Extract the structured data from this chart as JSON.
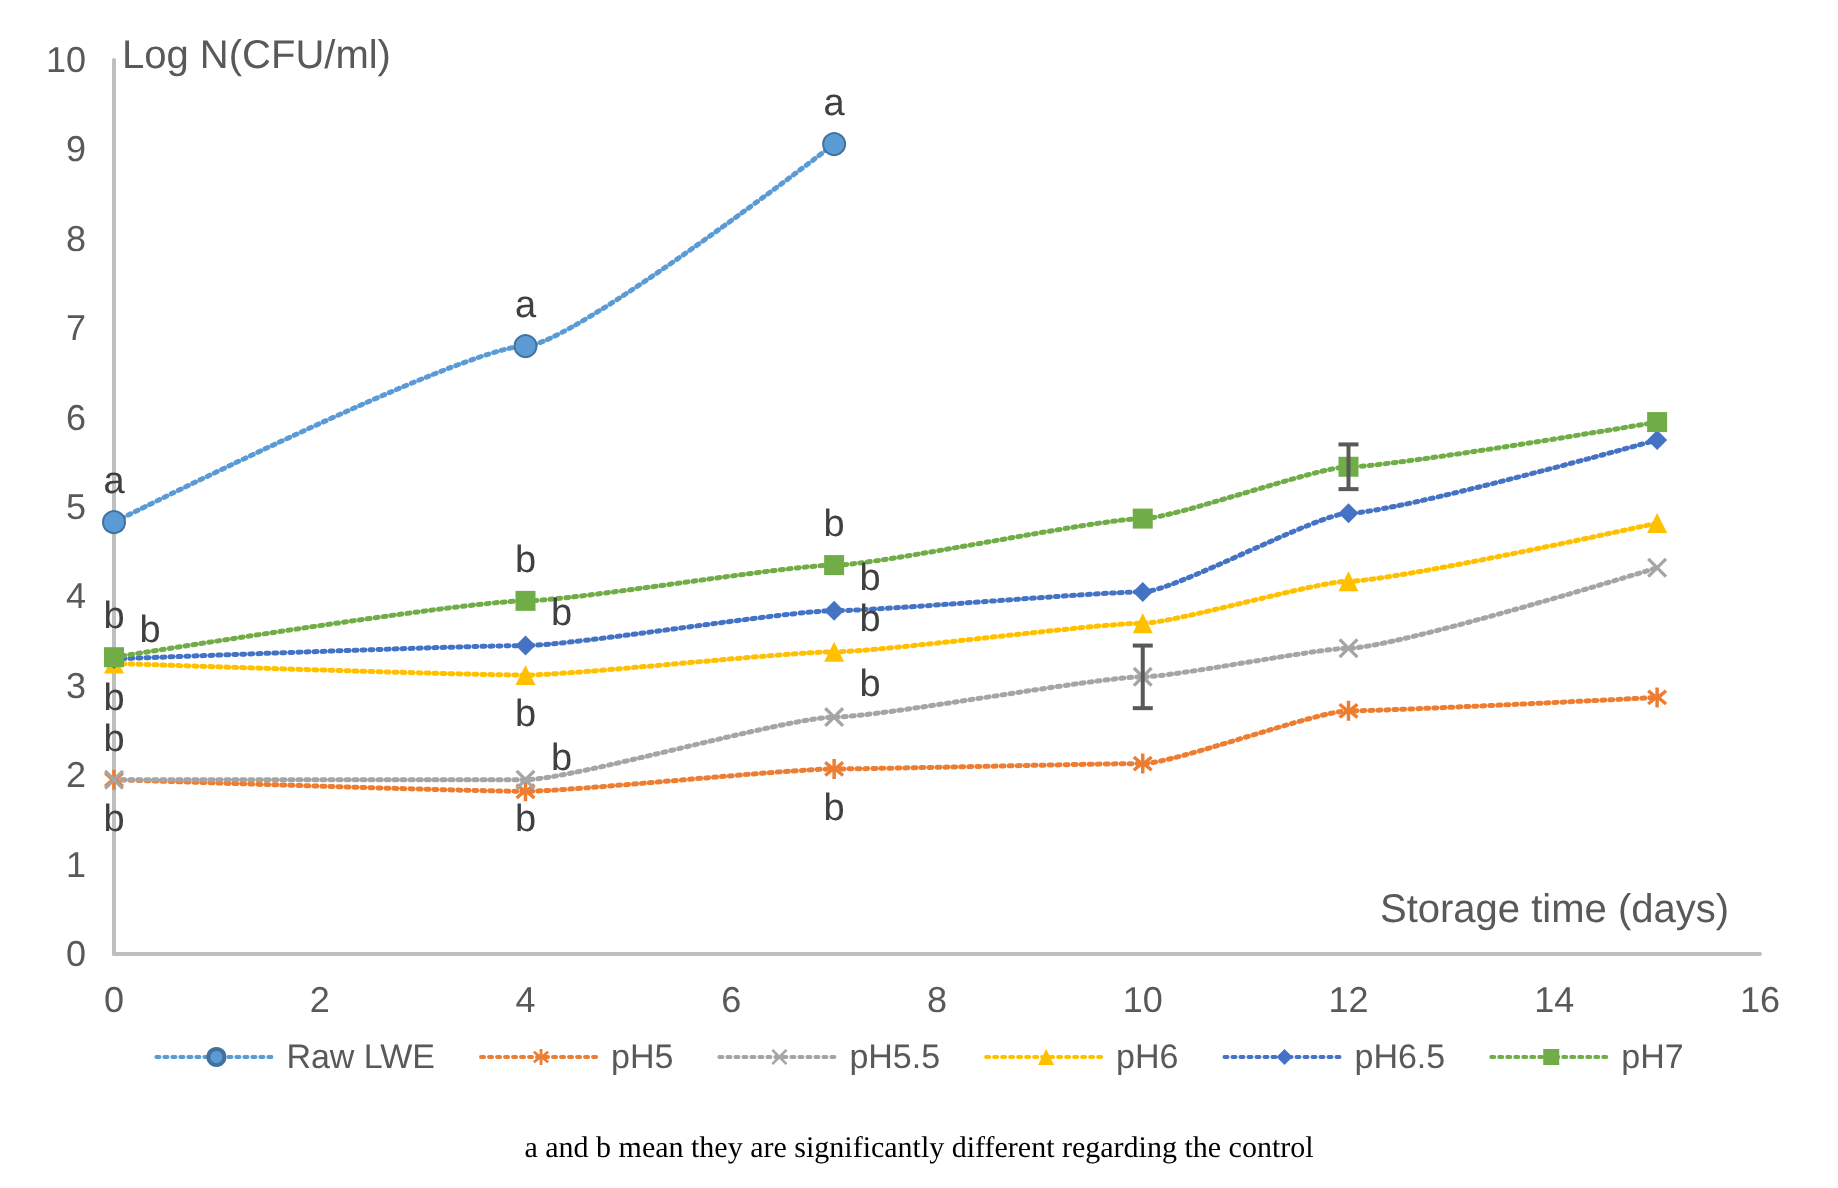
{
  "chart_data": {
    "type": "line",
    "xlabel": "Storage time (days)",
    "ylabel": "Log N(CFU/ml)",
    "xlim": [
      0,
      16
    ],
    "xticks": [
      0,
      2,
      4,
      6,
      8,
      10,
      12,
      14,
      16
    ],
    "ylim": [
      0,
      10
    ],
    "yticks": [
      0,
      1,
      2,
      3,
      4,
      5,
      6,
      7,
      8,
      9,
      10
    ],
    "grid": false,
    "legend": "bottom",
    "line_style": "dotted",
    "series": [
      {
        "name": "Raw LWE",
        "color": "#5b9bd5",
        "marker": "circle",
        "x": [
          0,
          4,
          7
        ],
        "values": [
          4.83,
          6.8,
          9.06
        ]
      },
      {
        "name": "pH5",
        "color": "#ed7d31",
        "marker": "star",
        "x": [
          0,
          4,
          7,
          10,
          12,
          15
        ],
        "values": [
          1.95,
          1.82,
          2.07,
          2.13,
          2.72,
          2.87
        ]
      },
      {
        "name": "pH5.5",
        "color": "#a5a5a5",
        "marker": "cross",
        "x": [
          0,
          4,
          7,
          10,
          12,
          15
        ],
        "values": [
          1.95,
          1.95,
          2.65,
          3.1,
          3.42,
          4.32
        ],
        "errors": [
          null,
          null,
          null,
          0.35,
          null,
          null
        ]
      },
      {
        "name": "pH6",
        "color": "#ffc000",
        "marker": "triangle",
        "x": [
          0,
          4,
          7,
          10,
          12,
          15
        ],
        "values": [
          3.25,
          3.12,
          3.38,
          3.7,
          4.17,
          4.82
        ]
      },
      {
        "name": "pH6.5",
        "color": "#4472c4",
        "marker": "diamond",
        "x": [
          0,
          4,
          7,
          10,
          12,
          15
        ],
        "values": [
          3.3,
          3.45,
          3.84,
          4.05,
          4.93,
          5.75
        ]
      },
      {
        "name": "pH7",
        "color": "#70ad47",
        "marker": "square",
        "x": [
          0,
          4,
          7,
          10,
          12,
          15
        ],
        "values": [
          3.32,
          3.95,
          4.35,
          4.87,
          5.45,
          5.95
        ],
        "errors": [
          null,
          null,
          null,
          null,
          0.25,
          null
        ]
      }
    ],
    "annotations": [
      {
        "text": "a",
        "x": 0,
        "y": 4.83
      },
      {
        "text": "a",
        "x": 4,
        "y": 6.8
      },
      {
        "text": "a",
        "x": 7,
        "y": 9.06
      },
      {
        "text": "b",
        "x": 0,
        "y": 3.32
      },
      {
        "text": "b",
        "x": 0,
        "y": 3.3
      },
      {
        "text": "b",
        "x": 0,
        "y": 3.25
      },
      {
        "text": "b",
        "x": 0,
        "y": 1.95
      },
      {
        "text": "b",
        "x": 0,
        "y": 1.95
      },
      {
        "text": "b",
        "x": 4,
        "y": 3.95
      },
      {
        "text": "b",
        "x": 4,
        "y": 3.45
      },
      {
        "text": "b",
        "x": 4,
        "y": 3.12
      },
      {
        "text": "b",
        "x": 4,
        "y": 1.95
      },
      {
        "text": "b",
        "x": 4,
        "y": 1.82
      },
      {
        "text": "b",
        "x": 7,
        "y": 4.35
      },
      {
        "text": "b",
        "x": 7,
        "y": 3.84
      },
      {
        "text": "b",
        "x": 7,
        "y": 3.38
      },
      {
        "text": "b",
        "x": 7,
        "y": 2.65
      },
      {
        "text": "b",
        "x": 7,
        "y": 2.07
      },
      "a and b mean they are significantly different regarding the control"
    ]
  }
}
